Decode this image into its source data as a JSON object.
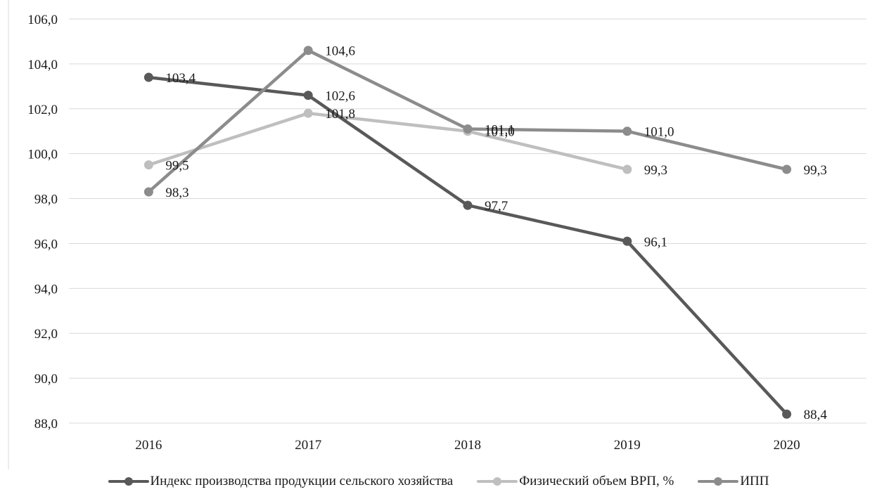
{
  "chart_data": {
    "type": "line",
    "categories": [
      "2016",
      "2017",
      "2018",
      "2019",
      "2020"
    ],
    "ylim": [
      88.0,
      106.0
    ],
    "yticks": [
      "88,0",
      "90,0",
      "92,0",
      "94,0",
      "96,0",
      "98,0",
      "100,0",
      "102,0",
      "104,0",
      "106,0"
    ],
    "ytick_values": [
      88,
      90,
      92,
      94,
      96,
      98,
      100,
      102,
      104,
      106
    ],
    "grid": true,
    "legend_position": "bottom",
    "series": [
      {
        "name": "Индекс производства продукции сельского хозяйства",
        "color": "#595959",
        "values": [
          103.4,
          102.6,
          97.7,
          96.1,
          88.4
        ],
        "labels": [
          "103,4",
          "102,6",
          "97,7",
          "96,1",
          "88,4"
        ]
      },
      {
        "name": "Физический объем ВРП, %",
        "color": "#bfbfbf",
        "values": [
          99.5,
          101.8,
          101.0,
          99.3,
          null
        ],
        "labels": [
          "99,5",
          "101,8",
          "101,0",
          "99,3",
          null
        ]
      },
      {
        "name": "ИПП",
        "color": "#8c8c8c",
        "values": [
          98.3,
          104.6,
          101.1,
          101.0,
          99.3
        ],
        "labels": [
          "98,3",
          "104,6",
          "101,1",
          "101,0",
          "99,3"
        ]
      }
    ]
  }
}
